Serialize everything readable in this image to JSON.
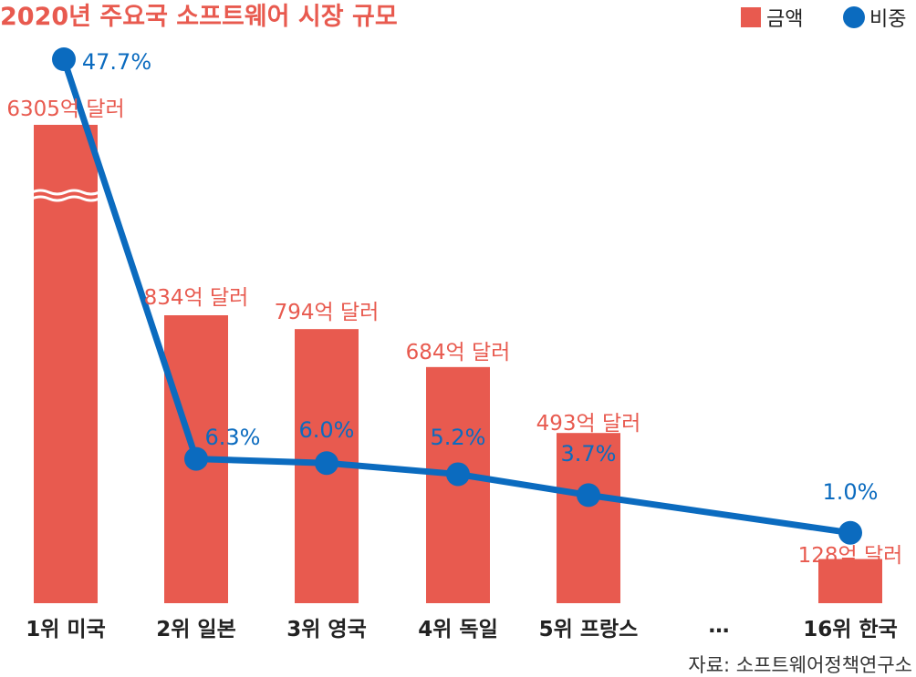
{
  "chart_data": {
    "type": "bar",
    "title": "2020년 주요국 소프트웨어 시장 규모",
    "categories": [
      "1위 미국",
      "2위 일본",
      "3위 영국",
      "4위 독일",
      "5위 프랑스",
      "16위 한국"
    ],
    "gap_label": "…",
    "series": [
      {
        "name": "금액",
        "type": "bar",
        "color": "#e85a4f",
        "values": [
          6305,
          834,
          794,
          684,
          493,
          128
        ],
        "labels": [
          "6305억 달러",
          "834억 달러",
          "794억 달러",
          "684억 달러",
          "493억 달러",
          "128억 달러"
        ],
        "axis_break_on_first": true
      },
      {
        "name": "비중",
        "type": "line",
        "color": "#0b6bbf",
        "values": [
          47.7,
          6.3,
          6.0,
          5.2,
          3.7,
          1.0
        ],
        "labels": [
          "47.7%",
          "6.3%",
          "6.0%",
          "5.2%",
          "3.7%",
          "1.0%"
        ]
      }
    ],
    "legend": [
      {
        "name": "금액",
        "marker": "square",
        "color": "#e85a4f"
      },
      {
        "name": "비중",
        "marker": "circle",
        "color": "#0b6bbf"
      }
    ],
    "legend_position": "top-right",
    "grid": false,
    "source": "자료: 소프트웨어정책연구소"
  }
}
